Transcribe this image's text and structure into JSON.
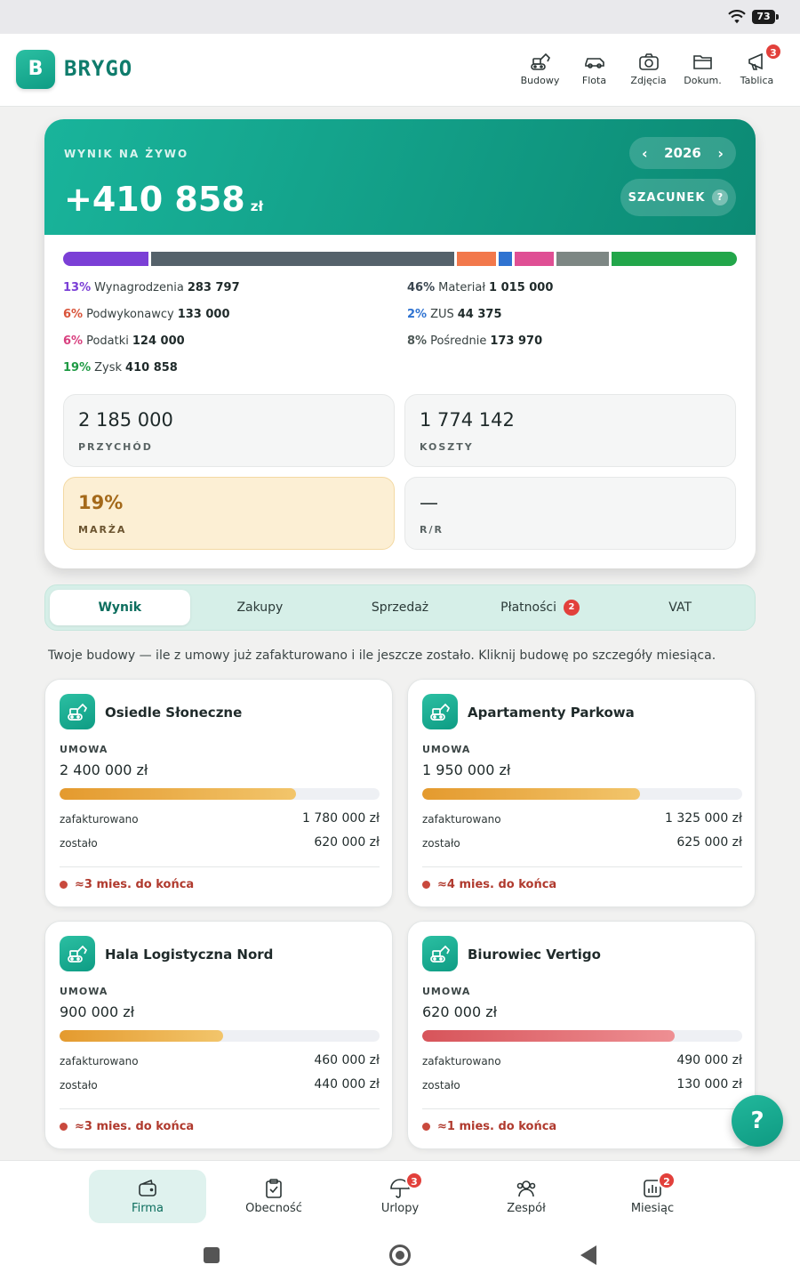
{
  "status": {
    "battery": "73"
  },
  "app": {
    "logo_letter": "B",
    "name": "BRYGO"
  },
  "nav": [
    {
      "label": "Budowy"
    },
    {
      "label": "Flota"
    },
    {
      "label": "Zdjęcia"
    },
    {
      "label": "Dokum."
    },
    {
      "label": "Tablica",
      "badge": "3"
    }
  ],
  "result": {
    "label": "WYNIK NA ŻYWO",
    "value": "+410 858",
    "unit": "zł",
    "year": "2026",
    "prev_arrow": "‹",
    "next_arrow": "›",
    "estimate_label": "SZACUNEK",
    "estimate_help": "?",
    "segments": [
      {
        "name": "Wynagrodzenia",
        "share": 0.13,
        "color": "#7b3fd6"
      },
      {
        "name": "Materiał",
        "share": 0.46,
        "color": "#55626b"
      },
      {
        "name": "Podwykonawcy",
        "share": 0.06,
        "color": "#f2784b"
      },
      {
        "name": "ZUS",
        "share": 0.02,
        "color": "#2f73d1"
      },
      {
        "name": "Podatki",
        "share": 0.06,
        "color": "#df4f94"
      },
      {
        "name": "Pośrednie",
        "share": 0.08,
        "color": "#7d8784"
      },
      {
        "name": "Zysk",
        "share": 0.19,
        "color": "#22a64a"
      }
    ],
    "breakdown_left": [
      {
        "pct": "13%",
        "name": "Wynagrodzenia",
        "value": "283 797",
        "color": "#7b3fd6"
      },
      {
        "pct": "6%",
        "name": "Podwykonawcy",
        "value": "133 000",
        "color": "#d9543a"
      },
      {
        "pct": "6%",
        "name": "Podatki",
        "value": "124 000",
        "color": "#d8407f"
      },
      {
        "pct": "19%",
        "name": "Zysk",
        "value": "410 858",
        "color": "#1f9a44"
      }
    ],
    "breakdown_right": [
      {
        "pct": "46%",
        "name": "Materiał",
        "value": "1 015 000",
        "color": "#3a4650"
      },
      {
        "pct": "2%",
        "name": "ZUS",
        "value": "44 375",
        "color": "#2f73d1"
      },
      {
        "pct": "8%",
        "name": "Pośrednie",
        "value": "173 970",
        "color": "#4d5856"
      }
    ],
    "stats": [
      {
        "value": "2 185 000",
        "label": "PRZYCHÓD"
      },
      {
        "value": "1 774 142",
        "label": "KOSZTY"
      },
      {
        "value": "19%",
        "label": "MARŻA"
      },
      {
        "value": "—",
        "label": "R/R"
      }
    ]
  },
  "tabs": [
    {
      "label": "Wynik",
      "active": true
    },
    {
      "label": "Zakupy"
    },
    {
      "label": "Sprzedaż"
    },
    {
      "label": "Płatności",
      "badge": "2"
    },
    {
      "label": "VAT"
    }
  ],
  "intro": "Twoje budowy — ile z umowy już zafakturowano i ile jeszcze zostało. Kliknij budowę po szczegóły miesiąca.",
  "projects": [
    {
      "name": "Osiedle Słoneczne",
      "contract_label": "UMOWA",
      "contract": "2 400 000 zł",
      "progress": 0.74,
      "invoiced_label": "zafakturowano",
      "invoiced": "1 780 000 zł",
      "left_label": "zostało",
      "left": "620 000 zł",
      "eta": "≈3 mies. do końca",
      "bar": "orange"
    },
    {
      "name": "Apartamenty Parkowa",
      "contract_label": "UMOWA",
      "contract": "1 950 000 zł",
      "progress": 0.68,
      "invoiced_label": "zafakturowano",
      "invoiced": "1 325 000 zł",
      "left_label": "zostało",
      "left": "625 000 zł",
      "eta": "≈4 mies. do końca",
      "bar": "orange"
    },
    {
      "name": "Hala Logistyczna Nord",
      "contract_label": "UMOWA",
      "contract": "900 000 zł",
      "progress": 0.51,
      "invoiced_label": "zafakturowano",
      "invoiced": "460 000 zł",
      "left_label": "zostało",
      "left": "440 000 zł",
      "eta": "≈3 mies. do końca",
      "bar": "orange"
    },
    {
      "name": "Biurowiec Vertigo",
      "contract_label": "UMOWA",
      "contract": "620 000 zł",
      "progress": 0.79,
      "invoiced_label": "zafakturowano",
      "invoiced": "490 000 zł",
      "left_label": "zostało",
      "left": "130 000 zł",
      "eta": "≈1 mies. do końca",
      "bar": "red"
    }
  ],
  "help_fab": "?",
  "bottom_nav": [
    {
      "label": "Firma",
      "active": true
    },
    {
      "label": "Obecność"
    },
    {
      "label": "Urlopy",
      "badge": "3"
    },
    {
      "label": "Zespół"
    },
    {
      "label": "Miesiąc",
      "badge": "2"
    }
  ]
}
